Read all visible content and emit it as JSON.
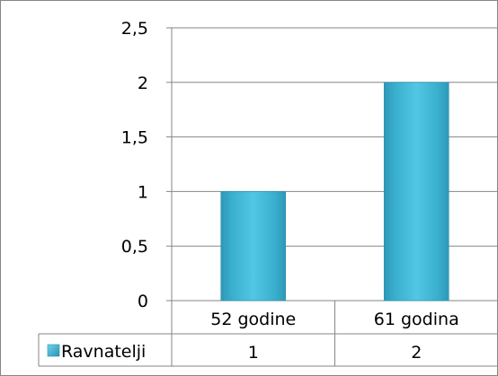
{
  "chart_data": {
    "type": "bar",
    "categories": [
      "52 godine",
      "61 godina"
    ],
    "series": [
      {
        "name": "Ravnatelji",
        "values": [
          1,
          2
        ],
        "color": "#3ab0cf"
      }
    ],
    "ylim": [
      0,
      2.5
    ],
    "y_ticks": [
      "0",
      "0,5",
      "1",
      "1,5",
      "2",
      "2,5"
    ],
    "grid": true,
    "legend": "data-table-left",
    "data_table": true
  }
}
